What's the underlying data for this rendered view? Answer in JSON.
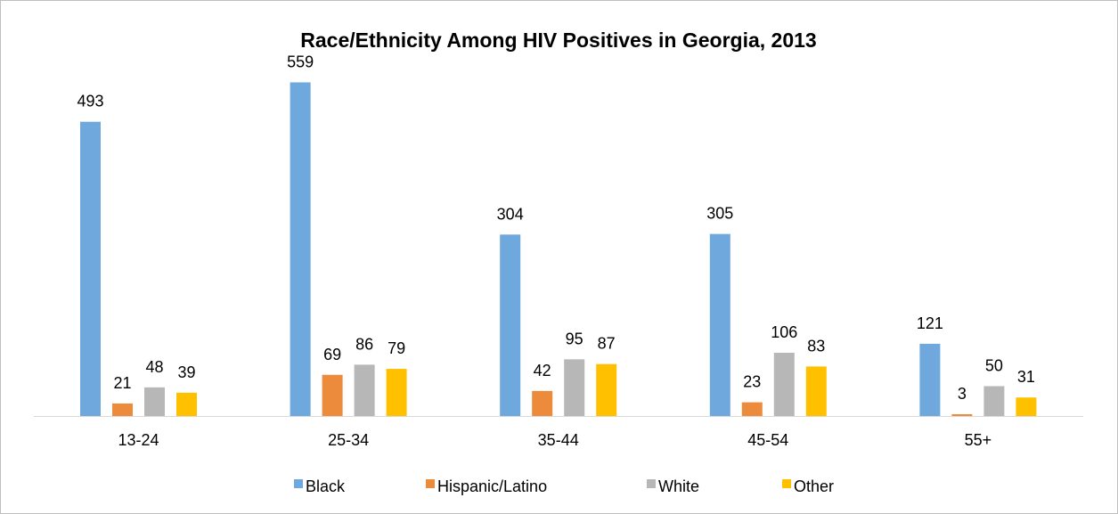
{
  "chart_data": {
    "type": "bar",
    "title": "Race/Ethnicity Among HIV Positives in Georgia, 2013",
    "xlabel": "",
    "ylabel": "",
    "categories": [
      "13-24",
      "25-34",
      "35-44",
      "45-54",
      "55+"
    ],
    "series": [
      {
        "name": "Black",
        "color": "#6fa8dc",
        "values": [
          493,
          559,
          304,
          305,
          121
        ]
      },
      {
        "name": "Hispanic/Latino",
        "color": "#ed8b3d",
        "values": [
          21,
          69,
          42,
          23,
          3
        ]
      },
      {
        "name": "White",
        "color": "#b7b7b7",
        "values": [
          48,
          86,
          95,
          106,
          50
        ]
      },
      {
        "name": "Other",
        "color": "#ffc000",
        "values": [
          39,
          79,
          87,
          83,
          31
        ]
      }
    ],
    "ylim": [
      0,
      600
    ],
    "grid": false,
    "legend_position": "bottom",
    "data_labels": true
  }
}
